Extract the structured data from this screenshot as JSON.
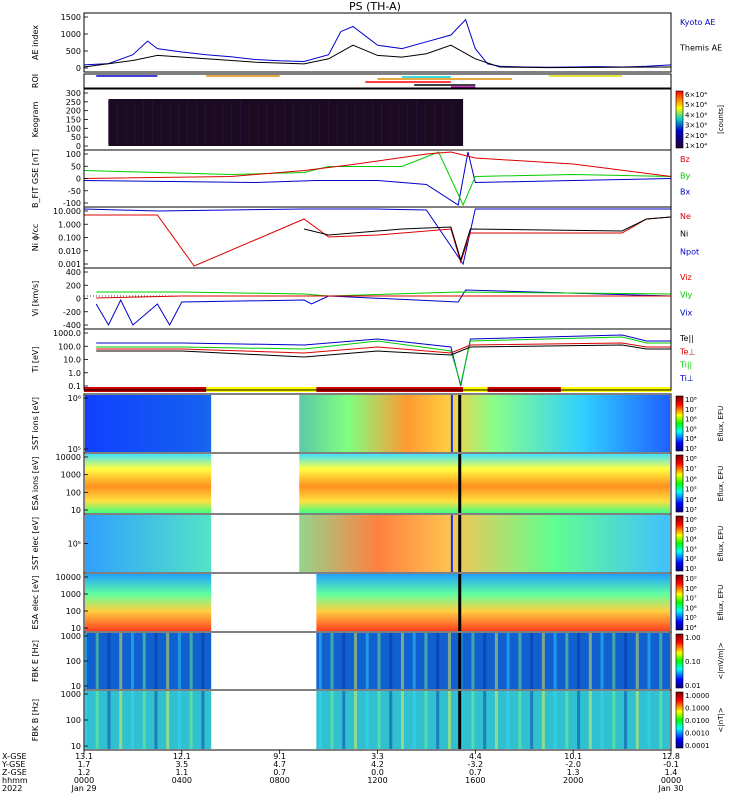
{
  "chart_data": {
    "type": "line",
    "title": "PS (TH-A)",
    "panels": [
      {
        "id": "ae",
        "ylabel": "AE index",
        "ticks": [
          "1500",
          "1000",
          "500",
          "0"
        ],
        "right_labels": [
          {
            "text": "Kyoto AE",
            "color": "#0000cc"
          },
          {
            "text": "Themis AE",
            "color": "#000000"
          }
        ],
        "series": [
          {
            "name": "Kyoto AE",
            "color": "#0000cc",
            "x": [
              0,
              1,
              2,
              2.6,
              3,
              4,
              5,
              6,
              7,
              8,
              9,
              10,
              10.5,
              11,
              12,
              13,
              14,
              15,
              15.6,
              16,
              16.5,
              17,
              18,
              19,
              20,
              21,
              22,
              23,
              24
            ],
            "values": [
              120,
              160,
              420,
              820,
              600,
              500,
              420,
              360,
              280,
              240,
              220,
              420,
              1100,
              1250,
              700,
              600,
              800,
              1000,
              1450,
              600,
              150,
              80,
              60,
              50,
              60,
              70,
              60,
              80,
              120
            ]
          },
          {
            "name": "Themis AE",
            "color": "#000000",
            "x": [
              0,
              2,
              3,
              5,
              7,
              9,
              10,
              11,
              12,
              13,
              14,
              15,
              16,
              17,
              19,
              24
            ],
            "values": [
              60,
              250,
              400,
              300,
              200,
              150,
              300,
              700,
              400,
              350,
              450,
              700,
              300,
              60,
              40,
              60
            ]
          }
        ]
      },
      {
        "id": "roi",
        "ylabel": "ROI"
      },
      {
        "id": "keogram",
        "ylabel": "Keogram",
        "ticks": [
          "300",
          "250",
          "200",
          "150",
          "100",
          "50",
          "0"
        ],
        "colorbar_label": "[counts]",
        "colorbar_ticks": [
          "6×10⁴",
          "5×10⁴",
          "4×10⁴",
          "3×10⁴",
          "2×10⁴",
          "1×10⁴"
        ]
      },
      {
        "id": "bfield",
        "ylabel": "B_FIT GSE [nT]",
        "ticks": [
          "100",
          "50",
          "0",
          "-50",
          "-100"
        ],
        "right_labels": [
          {
            "text": "Bz",
            "color": "#dd0000"
          },
          {
            "text": "By",
            "color": "#00cc00"
          },
          {
            "text": "Bx",
            "color": "#0000cc"
          }
        ]
      },
      {
        "id": "density",
        "ylabel": "Ni ϕ/cc",
        "ticks": [
          "10.000",
          "1.000",
          "0.100",
          "0.010",
          "0.001"
        ],
        "right_labels": [
          {
            "text": "Ne",
            "color": "#dd0000"
          },
          {
            "text": "Ni",
            "color": "#000000"
          },
          {
            "text": "Npot",
            "color": "#0000cc"
          }
        ]
      },
      {
        "id": "velocity",
        "ylabel": "Vi [km/s]",
        "ticks": [
          "400",
          "200",
          "0",
          "-200",
          "-400"
        ],
        "right_labels": [
          {
            "text": "Viz",
            "color": "#dd0000"
          },
          {
            "text": "Viy",
            "color": "#00cc00"
          },
          {
            "text": "Vix",
            "color": "#0000cc"
          }
        ]
      },
      {
        "id": "temperature",
        "ylabel": "Ti [eV]",
        "ticks": [
          "1000.0",
          "100.0",
          "10.0",
          "1.0",
          "0.1"
        ],
        "right_labels": [
          {
            "text": "Te||",
            "color": "#000000"
          },
          {
            "text": "Te⊥",
            "color": "#dd0000"
          },
          {
            "text": "Ti||",
            "color": "#00cc00"
          },
          {
            "text": "Ti⊥",
            "color": "#0000cc"
          }
        ]
      },
      {
        "id": "sst_ion",
        "ylabel": "SST ions [eV]",
        "ticks": [
          "10⁶",
          "10⁵"
        ],
        "colorbar_label": "Eflux, EFU",
        "colorbar_ticks": [
          "10⁸",
          "10⁷",
          "10⁶",
          "10⁵",
          "10⁴",
          "10³"
        ]
      },
      {
        "id": "esa_ion",
        "ylabel": "ESA ions [eV]",
        "ticks": [
          "10000",
          "1000",
          "100",
          "10"
        ],
        "colorbar_label": "Eflux, EFU",
        "colorbar_ticks": [
          "10⁸",
          "10⁷",
          "10⁶",
          "10⁵",
          "10⁴",
          "10³"
        ]
      },
      {
        "id": "sst_elec",
        "ylabel": "SST elec [eV]",
        "ticks": [
          "10⁵"
        ],
        "colorbar_label": "Eflux, EFU",
        "colorbar_ticks": [
          "10⁶",
          "10⁵",
          "10⁴",
          "10³",
          "10²",
          "10¹"
        ]
      },
      {
        "id": "esa_elec",
        "ylabel": "ESA elec [eV]",
        "ticks": [
          "10000",
          "1000",
          "100",
          "10"
        ],
        "colorbar_label": "Eflux, EFU",
        "colorbar_ticks": [
          "10⁹",
          "10⁸",
          "10⁷",
          "10⁶",
          "10⁵",
          "10⁴"
        ]
      },
      {
        "id": "fbk_e",
        "ylabel": "FBK E [Hz]",
        "ticks": [
          "1000",
          "100",
          "10"
        ],
        "colorbar_label": "<|mV/m|>",
        "colorbar_ticks": [
          "1.00",
          "0.10",
          "0.01"
        ]
      },
      {
        "id": "fbk_b",
        "ylabel": "FBK B [Hz]",
        "ticks": [
          "1000",
          "100",
          "10"
        ],
        "colorbar_label": "<|nT|>",
        "colorbar_ticks": [
          "1.0000",
          "0.1000",
          "0.0100",
          "0.0010",
          "0.0001"
        ]
      }
    ],
    "footer": {
      "row_labels": [
        "X-GSE",
        "Y-GSE",
        "Z-GSE",
        "hhmm",
        "2022"
      ],
      "columns": [
        [
          "13.1",
          "1.7",
          "1.2",
          "0000",
          "Jan 29"
        ],
        [
          "12.1",
          "3.5",
          "1.1",
          "0400",
          ""
        ],
        [
          "9.1",
          "4.7",
          "0.7",
          "0800",
          ""
        ],
        [
          "3.3",
          "4.2",
          "0.0",
          "1200",
          ""
        ],
        [
          "4.4",
          "-3.2",
          "0.7",
          "1600",
          ""
        ],
        [
          "10.1",
          "-2.0",
          "1.3",
          "2000",
          ""
        ],
        [
          "12.8",
          "-0.1",
          "1.4",
          "0000",
          "Jan 30"
        ]
      ]
    },
    "x_unit": "hours since Jan 29 0000 UT",
    "xlim": [
      0,
      24
    ]
  }
}
